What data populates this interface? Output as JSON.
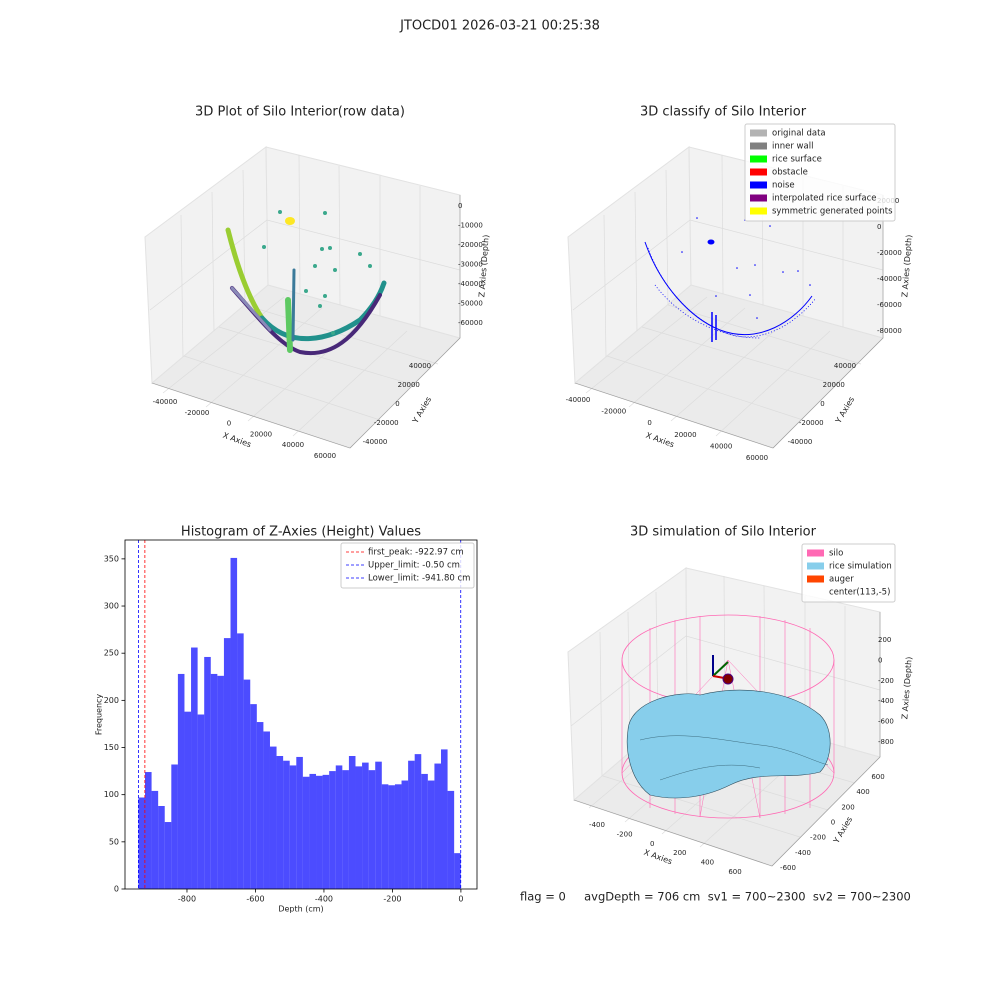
{
  "title": "JTOCD01 2026-03-21 00:25:38",
  "footer": "flag = 0     avgDepth = 706 cm  sv1 = 700~2300  sv2 = 700~2300",
  "chart_data": [
    {
      "type": "scatter3d",
      "title": "3D Plot of Silo Interior(row data)",
      "xlabel": "X Axies",
      "ylabel": "Y Axies",
      "zlabel": "Z Axies (Depth)",
      "xticks": [
        -40000,
        -20000,
        0,
        20000,
        40000,
        60000
      ],
      "yticks": [
        -40000,
        -20000,
        0,
        20000,
        40000
      ],
      "zticks": [
        -60000,
        -50000,
        -40000,
        -30000,
        -20000,
        -10000,
        0
      ]
    },
    {
      "type": "scatter3d",
      "title": "3D classify of Silo Interior",
      "xlabel": "X Axies",
      "ylabel": "Y Axies",
      "zlabel": "Z Axies (Depth)",
      "xticks": [
        -40000,
        -20000,
        0,
        20000,
        40000,
        60000
      ],
      "yticks": [
        -40000,
        -20000,
        0,
        20000,
        40000
      ],
      "zticks": [
        -80000,
        -60000,
        -40000,
        -20000,
        0,
        20000
      ],
      "legend_position": "upper right",
      "legend": [
        {
          "name": "original data",
          "color": "#b3b3b3"
        },
        {
          "name": "inner wall",
          "color": "#808080"
        },
        {
          "name": "rice surface",
          "color": "#00ff00"
        },
        {
          "name": "obstacle",
          "color": "#ff0000"
        },
        {
          "name": "noise",
          "color": "#0000ff"
        },
        {
          "name": "interpolated rice surface",
          "color": "#800080"
        },
        {
          "name": "symmetric generated points",
          "color": "#ffff00"
        }
      ]
    },
    {
      "type": "histogram",
      "title": "Histogram of Z-Axies (Height) Values",
      "xlabel": "Depth (cm)",
      "ylabel": "Frequency",
      "color": "#0000ff",
      "alpha": 0.7,
      "bins": [
        -941.8,
        -922.59,
        -903.38,
        -884.17,
        -864.96,
        -845.75,
        -826.54,
        -807.33,
        -788.12,
        -768.91,
        -749.7,
        -730.49,
        -711.28,
        -692.07,
        -672.86,
        -653.65,
        -634.44,
        -615.23,
        -596.02,
        -576.81,
        -557.6,
        -538.39,
        -519.18,
        -499.97,
        -480.76,
        -461.55,
        -442.34,
        -423.13,
        -403.92,
        -384.71,
        -365.5,
        -346.29,
        -327.08,
        -307.87,
        -288.66,
        -269.45,
        -250.24,
        -231.03,
        -211.82,
        -192.61,
        -173.4,
        -154.19,
        -134.98,
        -115.77,
        -96.56,
        -77.35,
        -58.14,
        -38.93,
        -19.72,
        -0.5
      ],
      "counts": [
        97,
        124,
        104,
        88,
        71,
        132,
        228,
        188,
        256,
        185,
        246,
        228,
        226,
        266,
        351,
        271,
        222,
        196,
        177,
        167,
        151,
        141,
        136,
        131,
        140,
        119,
        122,
        120,
        121,
        125,
        131,
        126,
        141,
        130,
        134,
        126,
        135,
        111,
        110,
        111,
        115,
        136,
        143,
        122,
        115,
        133,
        148,
        104,
        38
      ],
      "xlim": [
        -981,
        47
      ],
      "ylim": [
        0,
        370
      ],
      "xticks": [
        -800,
        -600,
        -400,
        -200,
        0
      ],
      "yticks": [
        0,
        50,
        100,
        150,
        200,
        250,
        300,
        350
      ],
      "legend_position": "upper right",
      "vlines": [
        {
          "name": "first_peak: -922.97 cm",
          "value": -922.97,
          "color": "#ff0000"
        },
        {
          "name": "Upper_limit: -0.50 cm",
          "value": -0.5,
          "color": "#0000ff"
        },
        {
          "name": "Lower_limit: -941.80 cm",
          "value": -941.8,
          "color": "#0000ff"
        }
      ]
    },
    {
      "type": "surface3d",
      "title": "3D simulation of Silo Interior",
      "xlabel": "X Axies",
      "ylabel": "Y Axies",
      "zlabel": "Z Axies (Depth)",
      "xticks": [
        -400,
        -200,
        0,
        200,
        400,
        600
      ],
      "yticks": [
        -600,
        -400,
        -200,
        0,
        200,
        400,
        600
      ],
      "zticks": [
        -800,
        -600,
        -400,
        -200,
        0,
        200
      ],
      "legend_position": "upper right",
      "legend": [
        {
          "name": "silo",
          "color": "#ff69b4"
        },
        {
          "name": "rice simulation",
          "color": "#87ceeb"
        },
        {
          "name": "auger",
          "color": "#ff4500"
        },
        {
          "name": "center(113,-5)",
          "color": "#ffffff"
        }
      ]
    }
  ]
}
